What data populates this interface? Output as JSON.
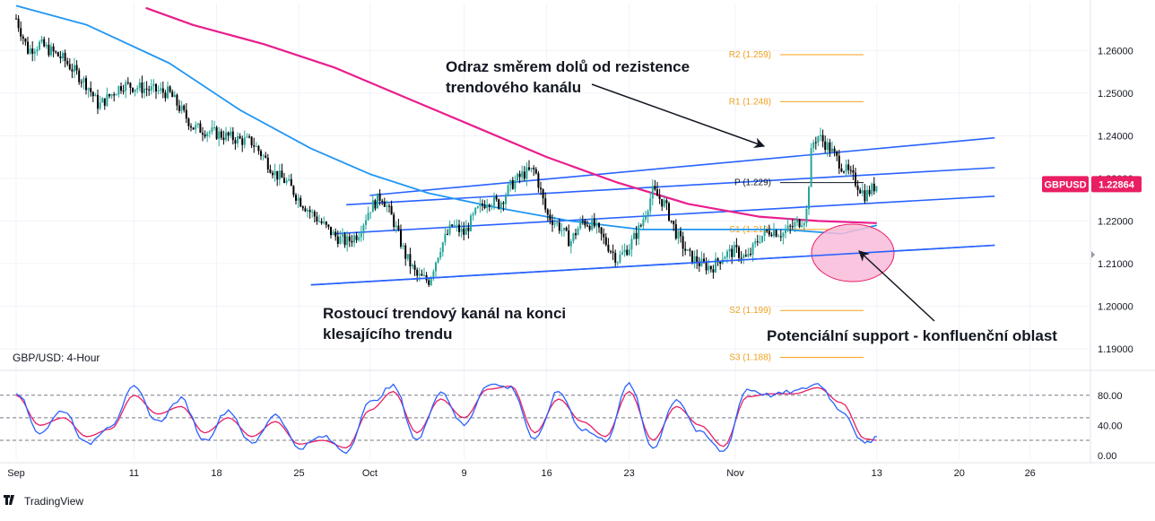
{
  "chart_data": {
    "type": "candlestick",
    "symbol_label": "GBP/USD: 4-Hour",
    "pair_tag": "GBPUSD",
    "last_price_label": "1.22864",
    "last_price": 1.22864,
    "price_axis": {
      "ylim": [
        1.186,
        1.271
      ],
      "ticks": [
        1.26,
        1.25,
        1.24,
        1.23,
        1.22,
        1.21,
        1.2,
        1.19
      ],
      "tick_labels": [
        "1.26000",
        "1.25000",
        "1.24000",
        "1.23000",
        "1.22000",
        "1.21000",
        "1.20000",
        "1.19000"
      ]
    },
    "time_axis": {
      "start": "2022-09-01",
      "end": "2022-11-30",
      "tick_labels": [
        "Sep",
        "11",
        "18",
        "25",
        "Oct",
        "9",
        "16",
        "23",
        "Nov",
        "13",
        "20",
        "26"
      ],
      "tick_dates": [
        "2022-09-01",
        "2022-09-11",
        "2022-09-18",
        "2022-09-25",
        "2022-10-01",
        "2022-10-09",
        "2022-10-16",
        "2022-10-23",
        "2022-11-01",
        "2022-11-13",
        "2022-11-20",
        "2022-11-26"
      ]
    },
    "close_path": [
      [
        "2022-09-01",
        1.2675
      ],
      [
        "2022-09-02",
        1.26
      ],
      [
        "2022-09-03",
        1.2615
      ],
      [
        "2022-09-05",
        1.258
      ],
      [
        "2022-09-07",
        1.252
      ],
      [
        "2022-09-08",
        1.247
      ],
      [
        "2022-09-10",
        1.252
      ],
      [
        "2022-09-12",
        1.251
      ],
      [
        "2022-09-14",
        1.25
      ],
      [
        "2022-09-15",
        1.246
      ],
      [
        "2022-09-16",
        1.242
      ],
      [
        "2022-09-18",
        1.2405
      ],
      [
        "2022-09-20",
        1.239
      ],
      [
        "2022-09-21",
        1.2385
      ],
      [
        "2022-09-22",
        1.235
      ],
      [
        "2022-09-23",
        1.231
      ],
      [
        "2022-09-24",
        1.229
      ],
      [
        "2022-09-25",
        1.225
      ],
      [
        "2022-09-26",
        1.222
      ],
      [
        "2022-09-28",
        1.2165
      ],
      [
        "2022-09-29",
        1.215
      ],
      [
        "2022-09-30",
        1.217
      ],
      [
        "2022-10-01",
        1.223
      ],
      [
        "2022-10-02",
        1.226
      ],
      [
        "2022-10-03",
        1.22
      ],
      [
        "2022-10-04",
        1.212
      ],
      [
        "2022-10-05",
        1.207
      ],
      [
        "2022-10-06",
        1.206
      ],
      [
        "2022-10-07",
        1.214
      ],
      [
        "2022-10-08",
        1.219
      ],
      [
        "2022-10-09",
        1.217
      ],
      [
        "2022-10-10",
        1.222
      ],
      [
        "2022-10-11",
        1.225
      ],
      [
        "2022-10-12",
        1.224
      ],
      [
        "2022-10-13",
        1.2285
      ],
      [
        "2022-10-14",
        1.231
      ],
      [
        "2022-10-15",
        1.232
      ],
      [
        "2022-10-16",
        1.2215
      ],
      [
        "2022-10-17",
        1.219
      ],
      [
        "2022-10-18",
        1.215
      ],
      [
        "2022-10-19",
        1.22
      ],
      [
        "2022-10-20",
        1.219
      ],
      [
        "2022-10-21",
        1.215
      ],
      [
        "2022-10-22",
        1.211
      ],
      [
        "2022-10-23",
        1.214
      ],
      [
        "2022-10-24",
        1.219
      ],
      [
        "2022-10-25",
        1.227
      ],
      [
        "2022-10-26",
        1.224
      ],
      [
        "2022-10-27",
        1.217
      ],
      [
        "2022-10-28",
        1.212
      ],
      [
        "2022-10-29",
        1.21
      ],
      [
        "2022-10-30",
        1.209
      ],
      [
        "2022-10-31",
        1.212
      ],
      [
        "2022-11-01",
        1.213
      ],
      [
        "2022-11-02",
        1.211
      ],
      [
        "2022-11-03",
        1.216
      ],
      [
        "2022-11-04",
        1.218
      ],
      [
        "2022-11-05",
        1.217
      ],
      [
        "2022-11-06",
        1.219
      ],
      [
        "2022-11-07",
        1.221
      ],
      [
        "2022-11-07.5",
        1.238
      ],
      [
        "2022-11-08",
        1.24
      ],
      [
        "2022-11-09",
        1.237
      ],
      [
        "2022-11-10",
        1.233
      ],
      [
        "2022-11-11",
        1.23
      ],
      [
        "2022-11-12",
        1.226
      ],
      [
        "2022-11-13",
        1.2286
      ]
    ],
    "ma_fast": [
      [
        "2022-09-01",
        1.2705
      ],
      [
        "2022-09-07",
        1.266
      ],
      [
        "2022-09-14",
        1.257
      ],
      [
        "2022-09-20",
        1.246
      ],
      [
        "2022-09-26",
        1.237
      ],
      [
        "2022-10-01",
        1.231
      ],
      [
        "2022-10-06",
        1.2265
      ],
      [
        "2022-10-12",
        1.223
      ],
      [
        "2022-10-18",
        1.22
      ],
      [
        "2022-10-24",
        1.218
      ],
      [
        "2022-10-30",
        1.218
      ],
      [
        "2022-11-05",
        1.218
      ],
      [
        "2022-11-10",
        1.217
      ],
      [
        "2022-11-13",
        1.219
      ]
    ],
    "ma_slow": [
      [
        "2022-09-12",
        1.27
      ],
      [
        "2022-09-16",
        1.266
      ],
      [
        "2022-09-22",
        1.2615
      ],
      [
        "2022-09-28",
        1.256
      ],
      [
        "2022-10-04",
        1.249
      ],
      [
        "2022-10-10",
        1.242
      ],
      [
        "2022-10-16",
        1.235
      ],
      [
        "2022-10-22",
        1.229
      ],
      [
        "2022-10-28",
        1.224
      ],
      [
        "2022-11-03",
        1.221
      ],
      [
        "2022-11-08",
        1.22
      ],
      [
        "2022-11-13",
        1.2195
      ]
    ],
    "channel_lines": [
      {
        "name": "upper-outer",
        "from": [
          "2022-10-01",
          1.226
        ],
        "to": [
          "2022-11-23",
          1.2395
        ]
      },
      {
        "name": "upper",
        "from": [
          "2022-09-29",
          1.2238
        ],
        "to": [
          "2022-11-23",
          1.2325
        ]
      },
      {
        "name": "middle",
        "from": [
          "2022-09-28",
          1.217
        ],
        "to": [
          "2022-11-23",
          1.2258
        ]
      },
      {
        "name": "lower",
        "from": [
          "2022-09-26",
          1.205
        ],
        "to": [
          "2022-11-23",
          1.2143
        ]
      }
    ],
    "pivots": [
      {
        "label": "R2 (1.259)",
        "value": 1.259
      },
      {
        "label": "R1 (1.248)",
        "value": 1.248
      },
      {
        "label": "P (1.229)",
        "value": 1.229
      },
      {
        "label": "S1 (1.218)",
        "value": 1.218
      },
      {
        "label": "S2 (1.199)",
        "value": 1.199
      },
      {
        "label": "S3 (1.188)",
        "value": 1.188
      }
    ],
    "annotations": [
      {
        "lines": [
          "Odraz směrem dolů od rezistence",
          "trendového kanálu"
        ]
      },
      {
        "lines": [
          "Rostoucí trendový kanál na konci",
          "klesajícího trendu"
        ]
      },
      {
        "lines": [
          "Potenciální support - konfluenční oblast"
        ]
      }
    ],
    "oscillator": {
      "ylim": [
        -5,
        100
      ],
      "ticks": [
        0,
        40,
        80
      ],
      "tick_labels": [
        "0.00",
        "40.00",
        "80.00"
      ],
      "levels": [
        20,
        50,
        80
      ],
      "k": [
        [
          "2022-09-01",
          85
        ],
        [
          "2022-09-03",
          30
        ],
        [
          "2022-09-05",
          60
        ],
        [
          "2022-09-07",
          15
        ],
        [
          "2022-09-09",
          40
        ],
        [
          "2022-09-11",
          90
        ],
        [
          "2022-09-13",
          45
        ],
        [
          "2022-09-15",
          75
        ],
        [
          "2022-09-17",
          20
        ],
        [
          "2022-09-19",
          60
        ],
        [
          "2022-09-21",
          15
        ],
        [
          "2022-09-23",
          55
        ],
        [
          "2022-09-25",
          10
        ],
        [
          "2022-09-27",
          25
        ],
        [
          "2022-09-29",
          5
        ],
        [
          "2022-10-01",
          70
        ],
        [
          "2022-10-03",
          92
        ],
        [
          "2022-10-05",
          20
        ],
        [
          "2022-10-07",
          85
        ],
        [
          "2022-10-09",
          40
        ],
        [
          "2022-10-11",
          95
        ],
        [
          "2022-10-13",
          90
        ],
        [
          "2022-10-15",
          20
        ],
        [
          "2022-10-17",
          85
        ],
        [
          "2022-10-19",
          35
        ],
        [
          "2022-10-21",
          20
        ],
        [
          "2022-10-23",
          95
        ],
        [
          "2022-10-25",
          10
        ],
        [
          "2022-10-27",
          75
        ],
        [
          "2022-10-29",
          30
        ],
        [
          "2022-10-31",
          5
        ],
        [
          "2022-11-02",
          88
        ],
        [
          "2022-11-04",
          80
        ],
        [
          "2022-11-06",
          85
        ],
        [
          "2022-11-08",
          95
        ],
        [
          "2022-11-10",
          60
        ],
        [
          "2022-11-12",
          15
        ],
        [
          "2022-11-13",
          25
        ]
      ],
      "d": [
        [
          "2022-09-01",
          80
        ],
        [
          "2022-09-03",
          40
        ],
        [
          "2022-09-05",
          50
        ],
        [
          "2022-09-07",
          25
        ],
        [
          "2022-09-09",
          35
        ],
        [
          "2022-09-11",
          80
        ],
        [
          "2022-09-13",
          55
        ],
        [
          "2022-09-15",
          65
        ],
        [
          "2022-09-17",
          30
        ],
        [
          "2022-09-19",
          50
        ],
        [
          "2022-09-21",
          25
        ],
        [
          "2022-09-23",
          45
        ],
        [
          "2022-09-25",
          15
        ],
        [
          "2022-09-27",
          20
        ],
        [
          "2022-09-29",
          10
        ],
        [
          "2022-10-01",
          60
        ],
        [
          "2022-10-03",
          85
        ],
        [
          "2022-10-05",
          30
        ],
        [
          "2022-10-07",
          75
        ],
        [
          "2022-10-09",
          50
        ],
        [
          "2022-10-11",
          88
        ],
        [
          "2022-10-13",
          92
        ],
        [
          "2022-10-15",
          30
        ],
        [
          "2022-10-17",
          75
        ],
        [
          "2022-10-19",
          45
        ],
        [
          "2022-10-21",
          25
        ],
        [
          "2022-10-23",
          85
        ],
        [
          "2022-10-25",
          20
        ],
        [
          "2022-10-27",
          65
        ],
        [
          "2022-10-29",
          40
        ],
        [
          "2022-10-31",
          12
        ],
        [
          "2022-11-02",
          78
        ],
        [
          "2022-11-04",
          82
        ],
        [
          "2022-11-06",
          82
        ],
        [
          "2022-11-08",
          90
        ],
        [
          "2022-11-10",
          70
        ],
        [
          "2022-11-12",
          22
        ],
        [
          "2022-11-13",
          20
        ]
      ]
    },
    "colors": {
      "candle_up": "#26a69a",
      "candle_down": "#000000",
      "ma_fast": "#2196f3",
      "ma_slow": "#e91e8c",
      "channel": "#2962ff",
      "pivot": "#f7a21b",
      "pivot_p": "#131722",
      "zone_fill": "#f8bbd9",
      "zone_stroke": "#e91e63",
      "pair_badge": "#e91e63",
      "stoch_k": "#2962ff",
      "stoch_d": "#e91e63"
    },
    "logo": "TradingView"
  }
}
